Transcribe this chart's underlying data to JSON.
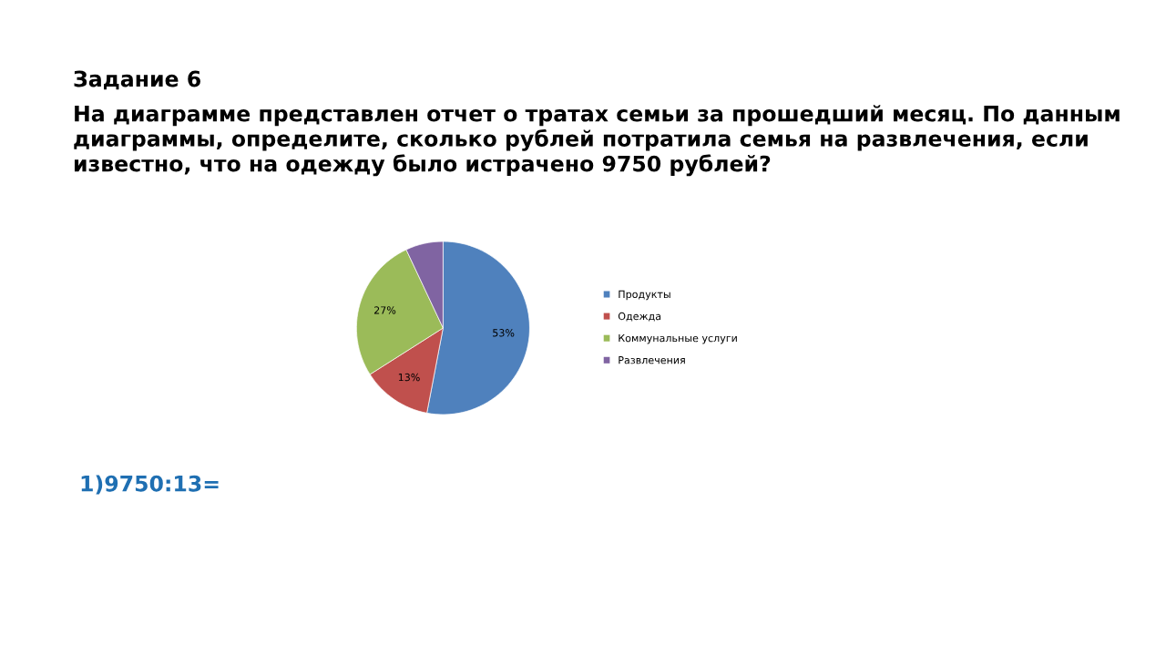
{
  "chart_data": {
    "type": "pie",
    "title": "Задание 6",
    "subtitle": "На диаграмме представлен отчет о тратах семьи за прошедший месяц. По данным диаграммы, определите, сколько рублей потратила семья на развлечения, если известно, что на одежду было истрачено 9750 рублей?",
    "categories": [
      "Продукты",
      "Одежда",
      "Коммунальные услуги",
      "Развлечения"
    ],
    "values": [
      53,
      13,
      27,
      7
    ],
    "value_labels": [
      "53%",
      "13%",
      "27%",
      null
    ],
    "colors": [
      "#4f81bd",
      "#c0504d",
      "#9bbb59",
      "#8064a2"
    ],
    "legend": "right",
    "annotations": [
      "1)9750:13="
    ]
  }
}
